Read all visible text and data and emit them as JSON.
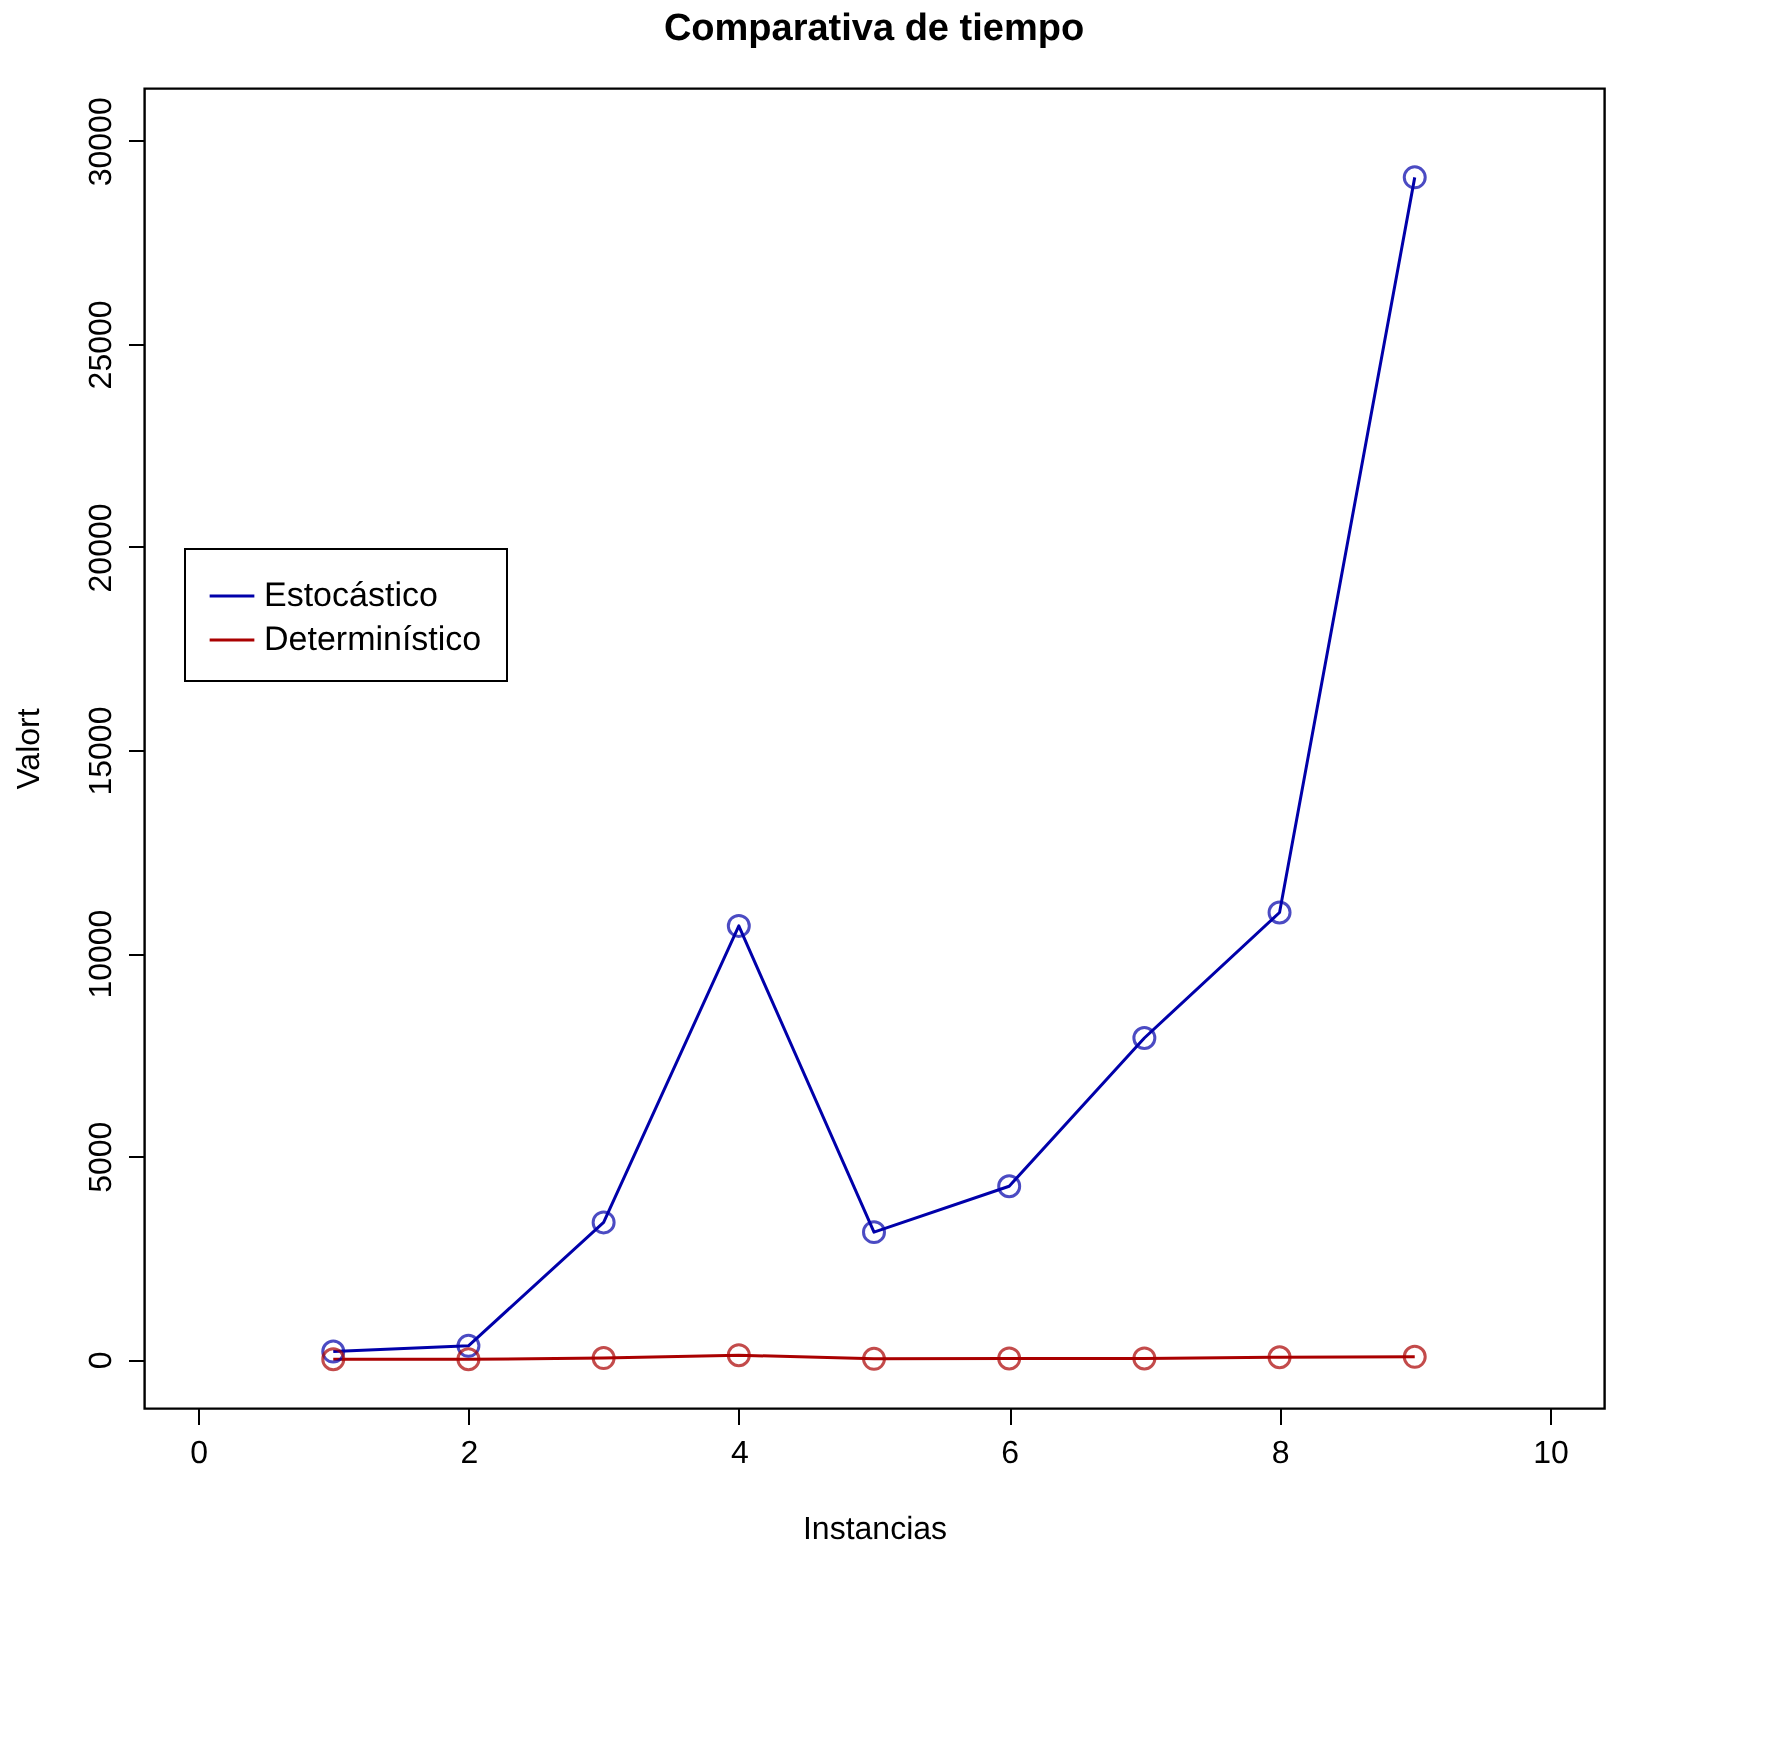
{
  "chart_data": {
    "type": "line",
    "title": "Comparativa de tiempo",
    "xlabel": "Instancias",
    "ylabel": "Valort",
    "x": [
      1,
      2,
      3,
      4,
      5,
      6,
      7,
      8,
      9
    ],
    "series": [
      {
        "name": "Estocástico",
        "color": "#0000aa",
        "values": [
          190,
          330,
          3370,
          10670,
          3130,
          4260,
          7910,
          11000,
          29100
        ]
      },
      {
        "name": "Determinístico",
        "color": "#aa0000",
        "values": [
          0,
          0,
          30,
          100,
          10,
          20,
          20,
          50,
          60
        ]
      }
    ],
    "xlim": [
      -0.4,
      10.4
    ],
    "xticks": [
      0,
      2,
      4,
      6,
      8,
      10
    ],
    "ylim": [
      -1200,
      31300
    ],
    "yticks": [
      0,
      5000,
      10000,
      15000,
      20000,
      25000,
      30000
    ],
    "grid": false,
    "legend": "left",
    "marker": "circle",
    "line_style": "solid"
  }
}
